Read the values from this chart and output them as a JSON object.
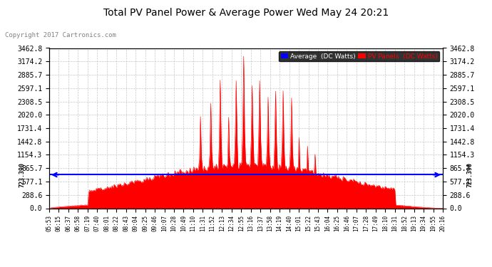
{
  "title": "Total PV Panel Power & Average Power Wed May 24 20:21",
  "copyright": "Copyright 2017 Cartronics.com",
  "average_value": 723.39,
  "y_max": 3462.8,
  "y_ticks": [
    0.0,
    288.6,
    577.1,
    865.7,
    1154.3,
    1442.8,
    1731.4,
    2020.0,
    2308.5,
    2597.1,
    2885.7,
    3174.2,
    3462.8
  ],
  "avg_label_text": "723.390",
  "legend_avg_label": "Average  (DC Watts)",
  "legend_pv_label": "PV Panels  (DC Watts)",
  "fill_color": "#ff0000",
  "avg_line_color": "#0000ff",
  "background_color": "#ffffff",
  "grid_color": "#c8c8c8",
  "x_labels": [
    "05:53",
    "06:15",
    "06:37",
    "06:58",
    "07:19",
    "07:40",
    "08:01",
    "08:22",
    "08:43",
    "09:04",
    "09:25",
    "09:46",
    "10:07",
    "10:28",
    "10:49",
    "11:10",
    "11:31",
    "11:52",
    "12:13",
    "12:34",
    "12:55",
    "13:16",
    "13:37",
    "13:58",
    "14:19",
    "14:40",
    "15:01",
    "15:22",
    "15:43",
    "16:04",
    "16:25",
    "16:46",
    "17:07",
    "17:28",
    "17:49",
    "18:10",
    "18:31",
    "18:52",
    "19:13",
    "19:34",
    "19:55",
    "20:16"
  ],
  "num_points": 420,
  "peak_value": 3462.8
}
